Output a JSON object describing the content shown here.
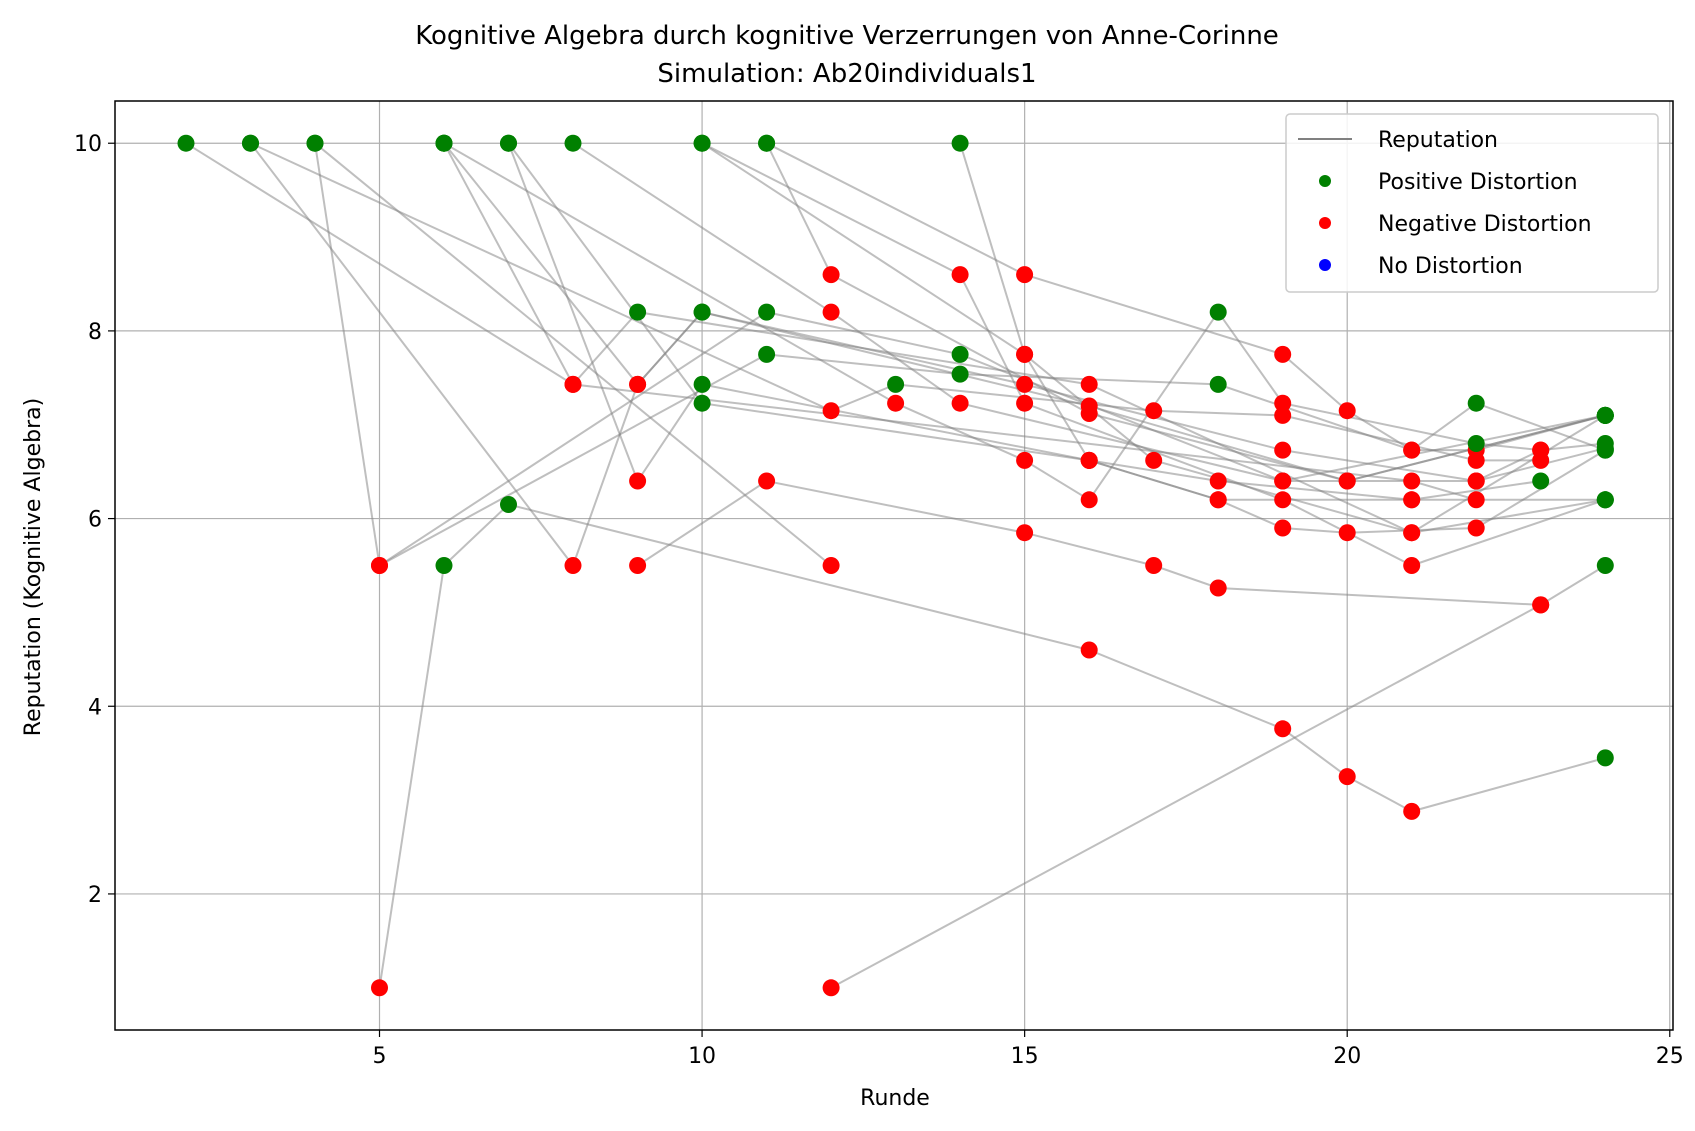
{
  "chart_data": {
    "type": "scatter",
    "title": "Kognitive Algebra durch kognitive Verzerrungen von Anne-Corinne",
    "subtitle": "Simulation: Ab20individuals1",
    "xlabel": "Runde",
    "ylabel": "Reputation (Kognitive Algebra)",
    "xlim": [
      0.9,
      25.05
    ],
    "ylim": [
      0.55,
      10.45
    ],
    "xticks": [
      5,
      10,
      15,
      20,
      25
    ],
    "yticks": [
      2,
      4,
      6,
      8,
      10
    ],
    "grid": true,
    "legend_position": "top-right",
    "colors": {
      "positive": "#008000",
      "negative": "#ff0000",
      "none": "#0000ff",
      "line": "#808080"
    },
    "legend": [
      {
        "label": "Reputation",
        "kind": "line"
      },
      {
        "label": "Positive Distortion",
        "kind": "marker",
        "color": "#008000"
      },
      {
        "label": "Negative Distortion",
        "kind": "marker",
        "color": "#ff0000"
      },
      {
        "label": "No Distortion",
        "kind": "marker",
        "color": "#0000ff"
      }
    ],
    "series": [
      {
        "points": [
          [
            2,
            10,
            "P"
          ],
          [
            8,
            7.43,
            "N"
          ],
          [
            9,
            8.2,
            "P"
          ],
          [
            16,
            7.43,
            "N"
          ],
          [
            21,
            5.85,
            "N"
          ],
          [
            24,
            7.1,
            "P"
          ]
        ]
      },
      {
        "points": [
          [
            3,
            10,
            "P"
          ],
          [
            8,
            5.5,
            "N"
          ],
          [
            9,
            7.43,
            "N"
          ],
          [
            10,
            8.2,
            "P"
          ],
          [
            15,
            7.43,
            "N"
          ],
          [
            19,
            6.73,
            "N"
          ],
          [
            22,
            6.4,
            "N"
          ],
          [
            24,
            6.75,
            "P"
          ]
        ]
      },
      {
        "points": [
          [
            4,
            10,
            "P"
          ],
          [
            5,
            5.5,
            "N"
          ],
          [
            11,
            8.2,
            "P"
          ],
          [
            14,
            7.75,
            "P"
          ],
          [
            19,
            6.4,
            "N"
          ],
          [
            24,
            7.1,
            "P"
          ]
        ]
      },
      {
        "points": [
          [
            6,
            10,
            "P"
          ],
          [
            8,
            7.43,
            "N"
          ],
          [
            21,
            6.4,
            "N"
          ],
          [
            22,
            6.2,
            "N"
          ]
        ]
      },
      {
        "points": [
          [
            6,
            10,
            "P"
          ],
          [
            9,
            7.43,
            "N"
          ],
          [
            10,
            8.2,
            "P"
          ],
          [
            16,
            7.2,
            "N"
          ],
          [
            20,
            6.4,
            "N"
          ],
          [
            24,
            7.1,
            "P"
          ]
        ]
      },
      {
        "points": [
          [
            7,
            10,
            "P"
          ],
          [
            9,
            6.4,
            "N"
          ],
          [
            10,
            7.43,
            "P"
          ],
          [
            16,
            6.62,
            "N"
          ],
          [
            18,
            6.2,
            "N"
          ],
          [
            21,
            6.2,
            "N"
          ],
          [
            23,
            6.4,
            "P"
          ]
        ]
      },
      {
        "points": [
          [
            10,
            10,
            "P"
          ],
          [
            15,
            7.75,
            "N"
          ],
          [
            16,
            6.62,
            "N"
          ],
          [
            18,
            6.4,
            "N"
          ],
          [
            21,
            6.2,
            "N"
          ],
          [
            24,
            6.2,
            "P"
          ]
        ]
      },
      {
        "points": [
          [
            10,
            10,
            "P"
          ],
          [
            14,
            8.6,
            "N"
          ],
          [
            15,
            7.23,
            "N"
          ],
          [
            19,
            6.2,
            "N"
          ],
          [
            21,
            5.5,
            "N"
          ],
          [
            24,
            6.2,
            "P"
          ]
        ]
      },
      {
        "points": [
          [
            11,
            10,
            "P"
          ],
          [
            12,
            8.6,
            "N"
          ],
          [
            16,
            7.12,
            "N"
          ],
          [
            20,
            6.4,
            "N"
          ],
          [
            24,
            7.1,
            "P"
          ]
        ]
      },
      {
        "points": [
          [
            14,
            10,
            "P"
          ],
          [
            15,
            7.75,
            "N"
          ],
          [
            17,
            6.62,
            "N"
          ],
          [
            21,
            5.85,
            "N"
          ],
          [
            24,
            6.2,
            "P"
          ]
        ]
      },
      {
        "points": [
          [
            4,
            10,
            "P"
          ],
          [
            12,
            5.5,
            "N"
          ]
        ]
      },
      {
        "points": [
          [
            11,
            10,
            "P"
          ],
          [
            15,
            8.6,
            "N"
          ],
          [
            19,
            7.75,
            "N"
          ],
          [
            20,
            7.15,
            "N"
          ],
          [
            21,
            6.73,
            "N"
          ],
          [
            22,
            6.73,
            "N"
          ],
          [
            24,
            7.1,
            "P"
          ]
        ]
      },
      {
        "points": [
          [
            5,
            1,
            "N"
          ],
          [
            6,
            5.5,
            "P"
          ],
          [
            7,
            6.15,
            "P"
          ],
          [
            16,
            4.6,
            "N"
          ],
          [
            19,
            3.76,
            "N"
          ],
          [
            20,
            3.25,
            "N"
          ],
          [
            21,
            2.88,
            "N"
          ],
          [
            24,
            3.45,
            "P"
          ]
        ]
      },
      {
        "points": [
          [
            5,
            5.5,
            "N"
          ],
          [
            11,
            7.75,
            "P"
          ],
          [
            14,
            7.54,
            "P"
          ],
          [
            18,
            7.43,
            "P"
          ],
          [
            21,
            6.73,
            "N"
          ],
          [
            22,
            7.23,
            "P"
          ],
          [
            24,
            6.73,
            "P"
          ]
        ]
      },
      {
        "points": [
          [
            12,
            1,
            "N"
          ],
          [
            23,
            5.08,
            "N"
          ],
          [
            24,
            5.5,
            "P"
          ]
        ]
      },
      {
        "points": [
          [
            9,
            5.5,
            "N"
          ],
          [
            11,
            6.4,
            "N"
          ],
          [
            15,
            5.85,
            "N"
          ],
          [
            17,
            5.5,
            "N"
          ],
          [
            18,
            5.26,
            "N"
          ],
          [
            23,
            5.08,
            "N"
          ]
        ]
      },
      {
        "points": [
          [
            7,
            10,
            "P"
          ],
          [
            10,
            7.23,
            "P"
          ],
          [
            16,
            6.62,
            "N"
          ],
          [
            18,
            6.2,
            "N"
          ],
          [
            19,
            5.9,
            "N"
          ],
          [
            20,
            5.85,
            "N"
          ],
          [
            22,
            5.9,
            "N"
          ],
          [
            24,
            6.73,
            "P"
          ]
        ]
      },
      {
        "points": [
          [
            8,
            10,
            "P"
          ],
          [
            12,
            8.2,
            "N"
          ],
          [
            14,
            7.23,
            "N"
          ],
          [
            19,
            6.4,
            "N"
          ],
          [
            22,
            6.4,
            "N"
          ],
          [
            23,
            6.73,
            "N"
          ]
        ]
      },
      {
        "points": [
          [
            3,
            10,
            "P"
          ],
          [
            12,
            7.15,
            "N"
          ],
          [
            13,
            7.43,
            "P"
          ],
          [
            17,
            7.15,
            "N"
          ],
          [
            19,
            7.1,
            "N"
          ],
          [
            22,
            6.62,
            "N"
          ],
          [
            23,
            6.62,
            "N"
          ]
        ]
      },
      {
        "points": [
          [
            6,
            10,
            "P"
          ],
          [
            13,
            7.23,
            "N"
          ],
          [
            15,
            6.62,
            "N"
          ],
          [
            16,
            6.2,
            "N"
          ],
          [
            18,
            8.2,
            "P"
          ],
          [
            19,
            7.23,
            "N"
          ],
          [
            22,
            6.8,
            "P"
          ],
          [
            23,
            6.73,
            "N"
          ],
          [
            24,
            6.8,
            "P"
          ]
        ]
      }
    ]
  }
}
